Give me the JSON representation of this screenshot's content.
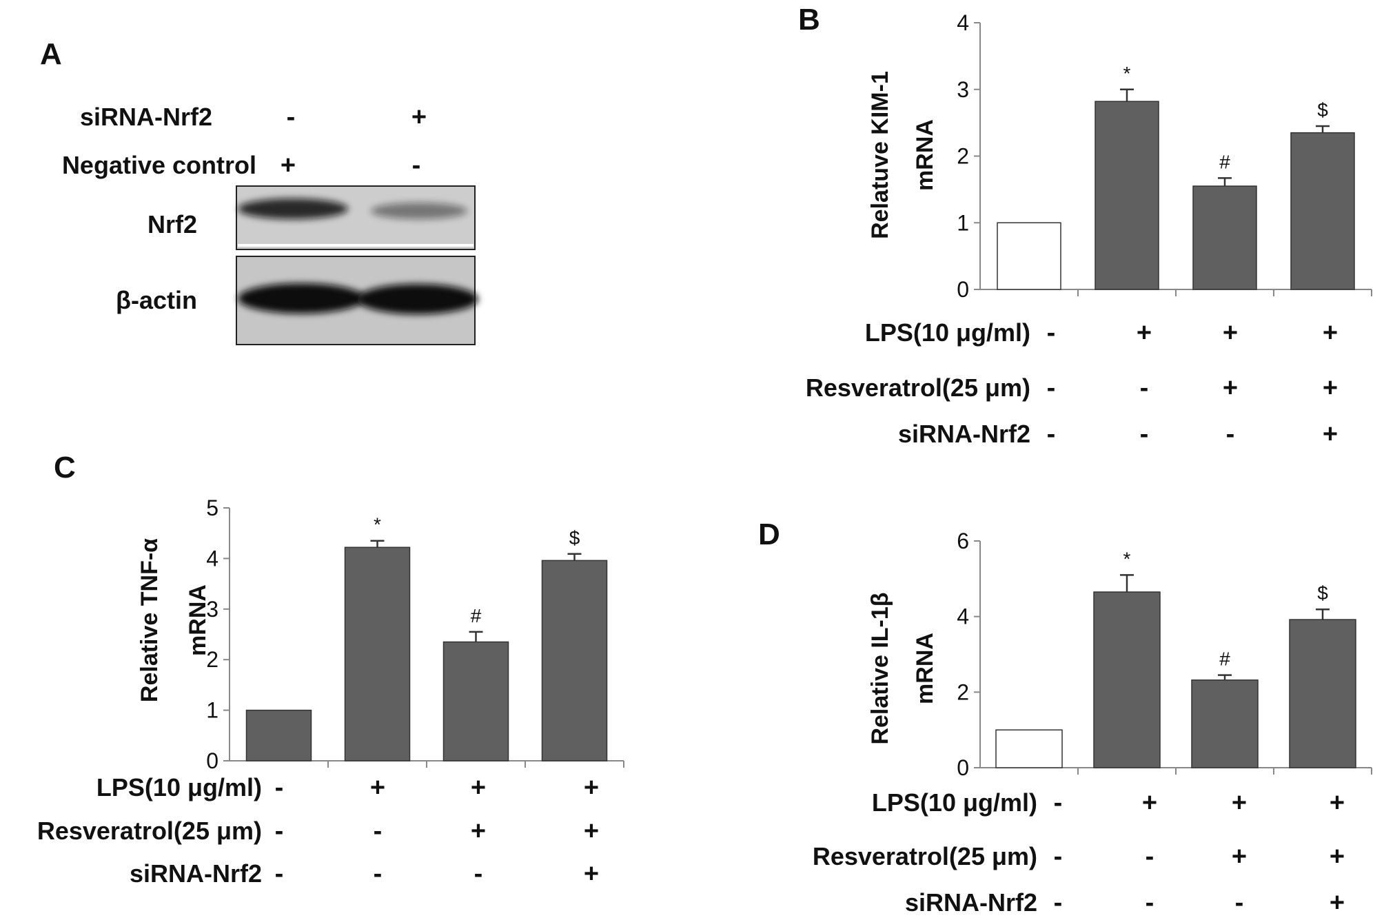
{
  "panels": {
    "A": {
      "letter": "A",
      "rows": [
        {
          "label": "siRNA-Nrf2",
          "lane1": "-",
          "lane2": "+"
        },
        {
          "label": "Negative control",
          "lane1": "+",
          "lane2": "-"
        }
      ],
      "blots": [
        {
          "label": "Nrf2",
          "band_intensity": [
            0.85,
            0.45
          ]
        },
        {
          "label": "β-actin",
          "band_intensity": [
            1.0,
            1.0
          ]
        }
      ]
    },
    "B": {
      "letter": "B"
    },
    "C": {
      "letter": "C"
    },
    "D": {
      "letter": "D"
    }
  },
  "chart_data": [
    {
      "panel": "B",
      "type": "bar",
      "ylabel": [
        "Relatuve KIM-1",
        "mRNA"
      ],
      "ylim": [
        0,
        4
      ],
      "yticks": [
        0,
        1,
        2,
        3,
        4
      ],
      "values": [
        1.0,
        2.82,
        1.55,
        2.35
      ],
      "errors": [
        0,
        0.18,
        0.12,
        0.1
      ],
      "significance": [
        "",
        "*",
        "#",
        "$"
      ],
      "fill": [
        "#ffffff",
        "#606060",
        "#606060",
        "#606060"
      ],
      "conditions": [
        {
          "label": "LPS(10 μg/ml)",
          "signs": [
            "-",
            "+",
            "+",
            "+"
          ]
        },
        {
          "label": "Resveratrol(25 μm)",
          "signs": [
            "-",
            "-",
            "+",
            "+"
          ]
        },
        {
          "label": "siRNA-Nrf2",
          "signs": [
            "-",
            "-",
            "-",
            "+"
          ]
        }
      ]
    },
    {
      "panel": "C",
      "type": "bar",
      "ylabel": [
        "Relative TNF-α",
        "mRNA"
      ],
      "ylim": [
        0,
        5
      ],
      "yticks": [
        0,
        1,
        2,
        3,
        4,
        5
      ],
      "values": [
        1.0,
        4.22,
        2.35,
        3.96
      ],
      "errors": [
        0,
        0.13,
        0.2,
        0.13
      ],
      "significance": [
        "",
        "*",
        "#",
        "$"
      ],
      "fill": [
        "#606060",
        "#606060",
        "#606060",
        "#606060"
      ],
      "conditions": [
        {
          "label": "LPS(10 μg/ml)",
          "signs": [
            "-",
            "+",
            "+",
            "+"
          ]
        },
        {
          "label": "Resveratrol(25 μm)",
          "signs": [
            "-",
            "-",
            "+",
            "+"
          ]
        },
        {
          "label": "siRNA-Nrf2",
          "signs": [
            "-",
            "-",
            "-",
            "+"
          ]
        }
      ]
    },
    {
      "panel": "D",
      "type": "bar",
      "ylabel": [
        "Relative IL-1β",
        "mRNA"
      ],
      "ylim": [
        0,
        6
      ],
      "yticks": [
        0,
        2,
        4,
        6
      ],
      "values": [
        1.0,
        4.65,
        2.32,
        3.92
      ],
      "errors": [
        0,
        0.45,
        0.13,
        0.27
      ],
      "significance": [
        "",
        "*",
        "#",
        "$"
      ],
      "fill": [
        "#ffffff",
        "#606060",
        "#606060",
        "#606060"
      ],
      "conditions": [
        {
          "label": "LPS(10 μg/ml)",
          "signs": [
            "-",
            "+",
            "+",
            "+"
          ]
        },
        {
          "label": "Resveratrol(25 μm)",
          "signs": [
            "-",
            "-",
            "+",
            "+"
          ]
        },
        {
          "label": "siRNA-Nrf2",
          "signs": [
            "-",
            "-",
            "-",
            "+"
          ]
        }
      ]
    }
  ]
}
